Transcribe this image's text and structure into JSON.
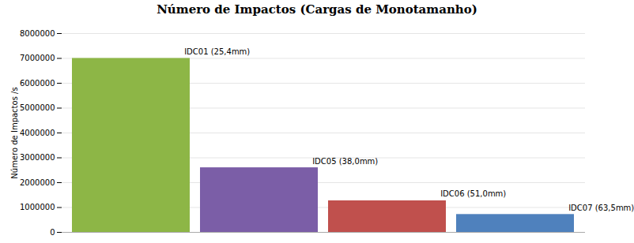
{
  "chart_data": {
    "type": "bar",
    "title": "Número de Impactos  (Cargas de Monotamanho)",
    "ylabel": "Número de Impactos /s",
    "categories": [
      "IDC01 (25,4mm)",
      "IDC05 (38,0mm)",
      "IDC06 (51,0mm)",
      "IDC07 (63,5mm)"
    ],
    "values": [
      7000000,
      2600000,
      1270000,
      720000
    ],
    "colors": [
      "#8DB646",
      "#7B5EA7",
      "#C0504D",
      "#4F81BD"
    ],
    "ylim": [
      0,
      8000000
    ],
    "yticks": [
      0,
      1000000,
      2000000,
      3000000,
      4000000,
      5000000,
      6000000,
      7000000,
      8000000
    ],
    "grid": true,
    "tick_labels": "y"
  }
}
